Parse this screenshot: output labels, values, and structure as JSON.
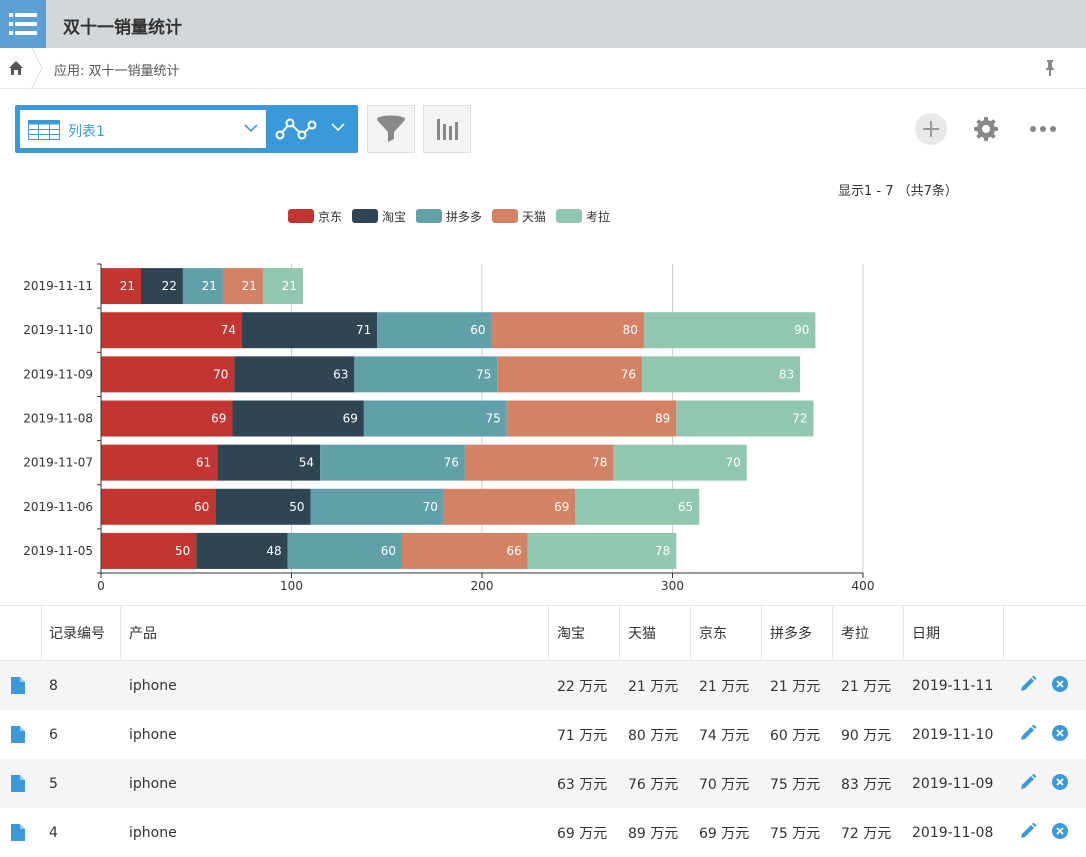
{
  "app": {
    "title": "双十一销量统计",
    "breadcrumb": "应用: 双十一销量统计"
  },
  "toolbar": {
    "view_name": "列表1"
  },
  "record_count": "显示1 - 7 （共7条）",
  "colors": {
    "accent": "#3a9ad9",
    "series": [
      "#c23531",
      "#2f4554",
      "#61a0a8",
      "#d48265",
      "#91c7ae"
    ]
  },
  "chart_data": {
    "type": "bar",
    "orientation": "horizontal",
    "stacked": true,
    "categories": [
      "2019-11-11",
      "2019-11-10",
      "2019-11-09",
      "2019-11-08",
      "2019-11-07",
      "2019-11-06",
      "2019-11-05"
    ],
    "series": [
      {
        "name": "京东",
        "values": [
          21,
          74,
          70,
          69,
          61,
          60,
          50
        ]
      },
      {
        "name": "淘宝",
        "values": [
          22,
          71,
          63,
          69,
          54,
          50,
          48
        ]
      },
      {
        "name": "拼多多",
        "values": [
          21,
          60,
          75,
          75,
          76,
          70,
          60
        ]
      },
      {
        "name": "天猫",
        "values": [
          21,
          80,
          76,
          89,
          78,
          69,
          66
        ]
      },
      {
        "name": "考拉",
        "values": [
          21,
          90,
          83,
          72,
          70,
          65,
          78
        ]
      }
    ],
    "xticks": [
      "0",
      "100",
      "200",
      "300",
      "400"
    ],
    "xlim": [
      0,
      400
    ],
    "grid": true,
    "legend": "top-center"
  },
  "table": {
    "columns": [
      "记录编号",
      "产品",
      "淘宝",
      "天猫",
      "京东",
      "拼多多",
      "考拉",
      "日期"
    ],
    "rows": [
      [
        "8",
        "iphone",
        "22 万元",
        "21 万元",
        "21 万元",
        "21 万元",
        "21 万元",
        "2019-11-11"
      ],
      [
        "6",
        "iphone",
        "71 万元",
        "80 万元",
        "74 万元",
        "60 万元",
        "90 万元",
        "2019-11-10"
      ],
      [
        "5",
        "iphone",
        "63 万元",
        "76 万元",
        "70 万元",
        "75 万元",
        "83 万元",
        "2019-11-09"
      ],
      [
        "4",
        "iphone",
        "69 万元",
        "89 万元",
        "69 万元",
        "75 万元",
        "72 万元",
        "2019-11-08"
      ]
    ]
  }
}
